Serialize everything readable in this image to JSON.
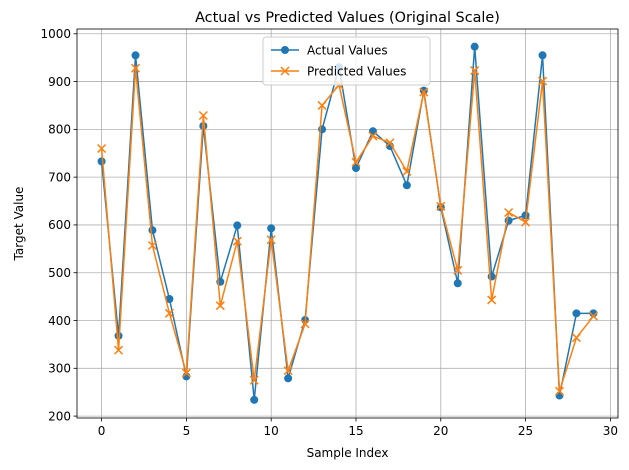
{
  "chart_data": {
    "type": "line",
    "title": "Actual vs Predicted Values (Original Scale)",
    "xlabel": "Sample Index",
    "ylabel": "Target Value",
    "xlim": [
      -1.45,
      30.45
    ],
    "ylim": [
      196,
      1010
    ],
    "grid": true,
    "legend_position": "top-center",
    "x": [
      0,
      1,
      2,
      3,
      4,
      5,
      6,
      7,
      8,
      9,
      10,
      11,
      12,
      13,
      14,
      15,
      16,
      17,
      18,
      19,
      20,
      21,
      22,
      23,
      24,
      25,
      26,
      27,
      28,
      29
    ],
    "x_ticks": [
      0,
      5,
      10,
      15,
      20,
      25,
      30
    ],
    "y_ticks": [
      200,
      300,
      400,
      500,
      600,
      700,
      800,
      900,
      1000
    ],
    "series": [
      {
        "name": "Actual Values",
        "color": "#1f77b4",
        "marker": "circle",
        "values": [
          733,
          368,
          955,
          589,
          445,
          283,
          807,
          481,
          599,
          234,
          593,
          279,
          401,
          800,
          930,
          719,
          796,
          765,
          683,
          881,
          637,
          478,
          973,
          492,
          609,
          620,
          955,
          243,
          415,
          415
        ]
      },
      {
        "name": "Predicted Values",
        "color": "#ff7f0e",
        "marker": "x",
        "values": [
          760,
          338,
          928,
          557,
          415,
          290,
          829,
          431,
          566,
          275,
          569,
          295,
          393,
          850,
          893,
          731,
          786,
          772,
          712,
          878,
          639,
          505,
          923,
          443,
          626,
          606,
          901,
          252,
          364,
          409
        ]
      }
    ]
  }
}
